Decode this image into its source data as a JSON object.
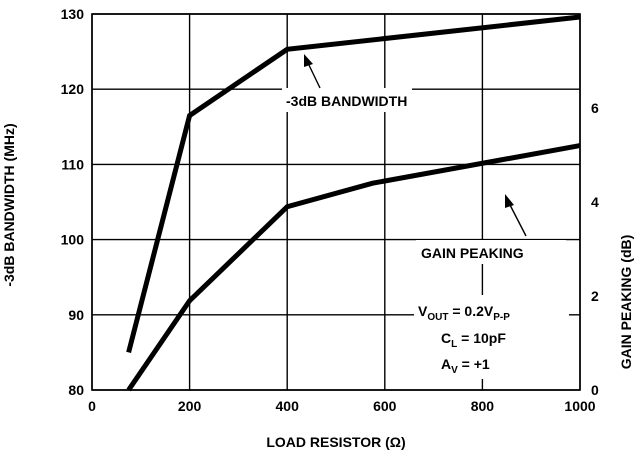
{
  "chart_data": {
    "type": "line",
    "xlabel": "LOAD RESISTOR (Ω)",
    "ylabel_left": "-3dB BANDWIDTH (MHz)",
    "ylabel_right": "GAIN PEAKING (dB)",
    "xlim": [
      0,
      1000
    ],
    "ylim_left": [
      80,
      130
    ],
    "ylim_right": [
      0,
      8
    ],
    "x_ticks": [
      "0",
      "200",
      "400",
      "600",
      "800",
      "1000"
    ],
    "y_left_ticks": [
      "80",
      "90",
      "100",
      "110",
      "120",
      "130"
    ],
    "y_right_ticks": [
      "0",
      "2",
      "4",
      "6"
    ],
    "grid": true,
    "series": [
      {
        "name": "-3dB BANDWIDTH",
        "axis": "left",
        "x": [
          75,
          200,
          400,
          1000
        ],
        "y": [
          85,
          116.5,
          125.3,
          129.6
        ]
      },
      {
        "name": "GAIN PEAKING",
        "axis": "right",
        "x": [
          75,
          200,
          400,
          575,
          1000
        ],
        "y": [
          0,
          1.9,
          3.9,
          4.4,
          5.2
        ]
      }
    ],
    "annotations": {
      "vout_main": "V",
      "vout_sub": "OUT",
      "vout_eq": " = 0.2V",
      "vout_pp": "P-P",
      "cl_main": "C",
      "cl_sub": "L",
      "cl_eq": " = 10pF",
      "av_main": "A",
      "av_sub": "V",
      "av_eq": " = +1"
    }
  }
}
